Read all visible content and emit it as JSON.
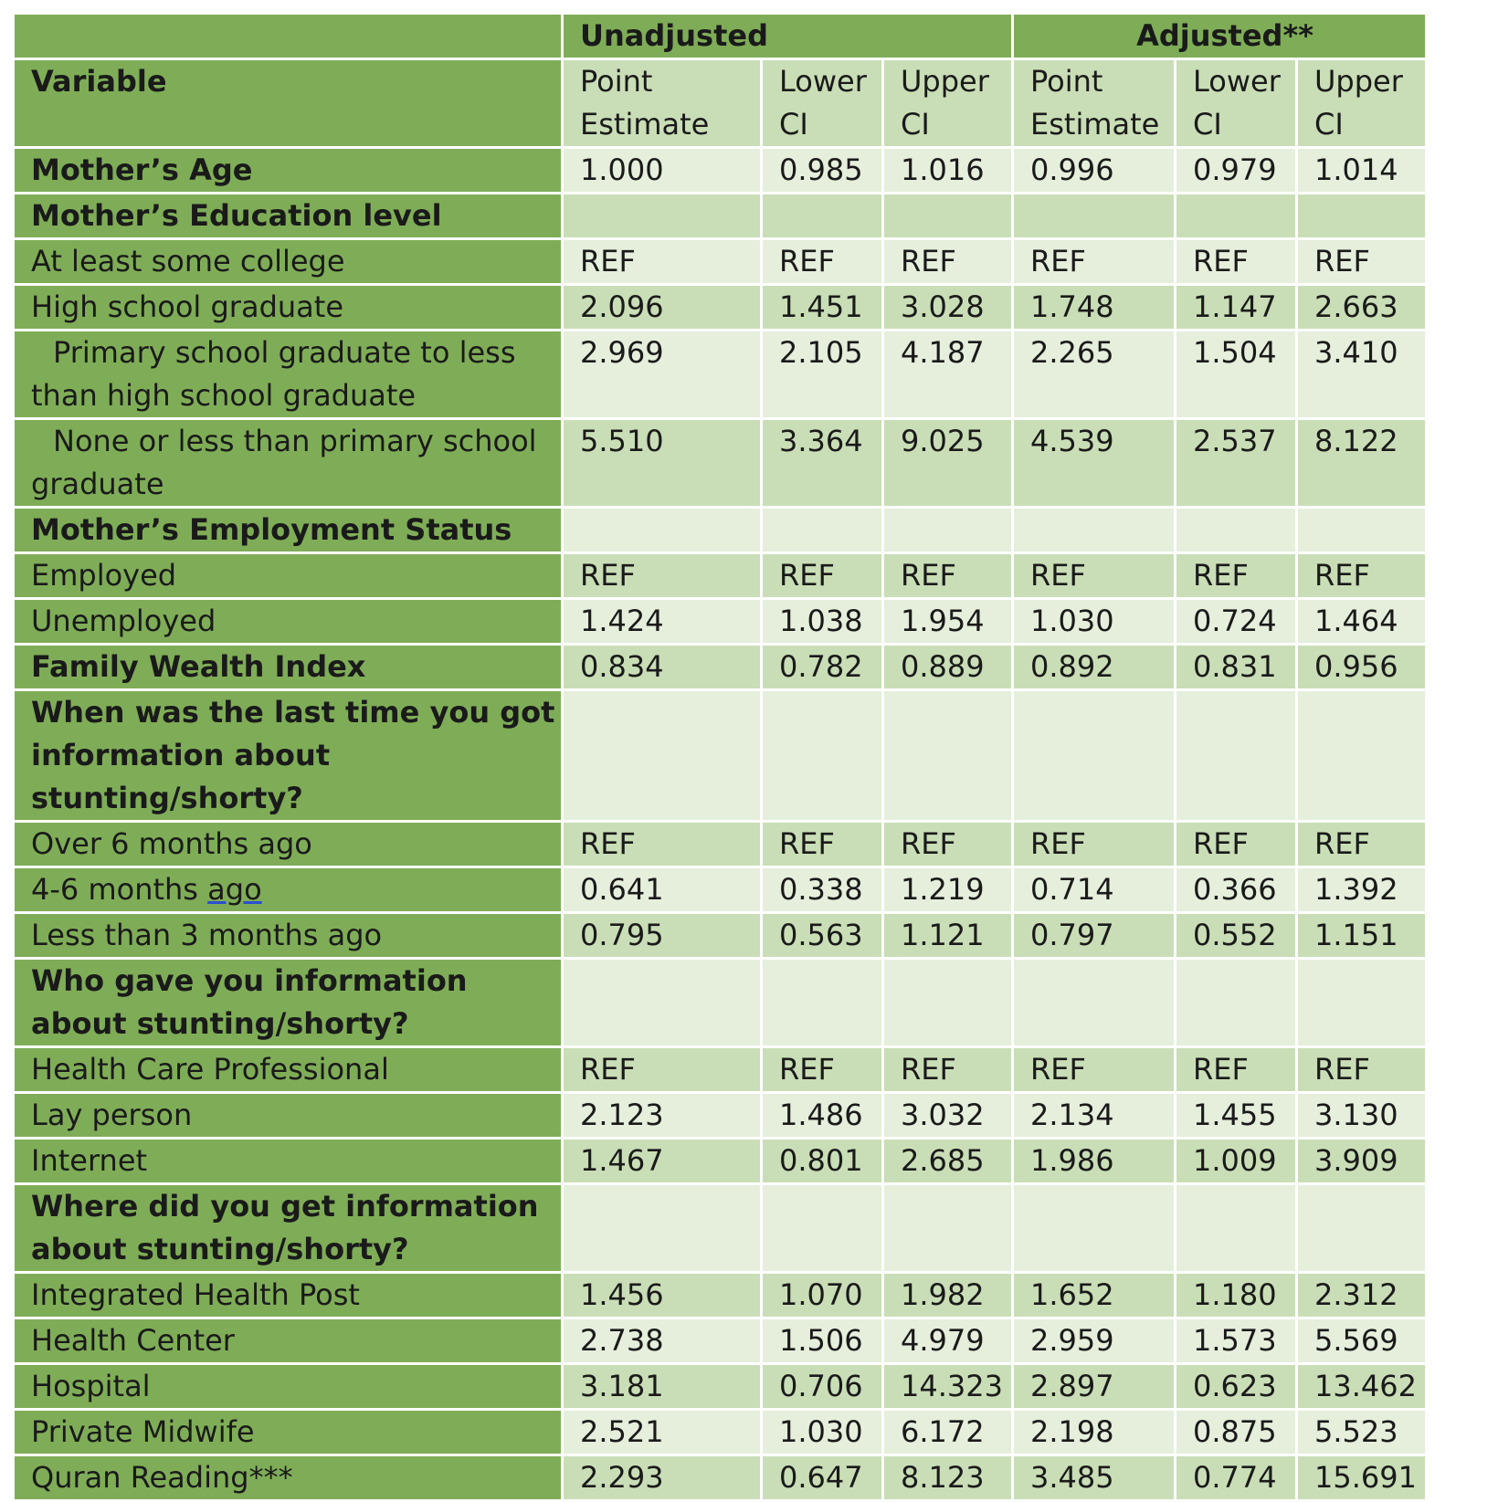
{
  "header": {
    "group_unadjusted": "Unadjusted",
    "group_adjusted": "Adjusted**",
    "variable": "Variable",
    "columns": [
      "Point Estimate",
      "Lower CI",
      "Upper CI",
      "Point Estimate",
      "Lower CI",
      "Upper CI"
    ]
  },
  "colors": {
    "label_green": "#7fad57",
    "band_dark": "#c9deb6",
    "band_light": "#e5efdc"
  },
  "rows": [
    {
      "label": "Mother’s Age",
      "values": [
        "1.000",
        "0.985",
        "1.016",
        "0.996",
        "0.979",
        "1.014"
      ]
    },
    {
      "label": "Mother’s Education level",
      "values": [
        "",
        "",
        "",
        "",
        "",
        ""
      ]
    },
    {
      "label": "At least some college",
      "values": [
        "REF",
        "REF",
        "REF",
        "REF",
        "REF",
        "REF"
      ]
    },
    {
      "label": "High school graduate",
      "values": [
        "2.096",
        "1.451",
        "3.028",
        "1.748",
        "1.147",
        "2.663"
      ]
    },
    {
      "label": "Primary school graduate to less than high school graduate",
      "values": [
        "2.969",
        "2.105",
        "4.187",
        "2.265",
        "1.504",
        "3.410"
      ]
    },
    {
      "label": "None or less than primary school graduate",
      "values": [
        "5.510",
        "3.364",
        "9.025",
        "4.539",
        "2.537",
        "8.122"
      ]
    },
    {
      "label": "Mother’s Employment Status",
      "values": [
        "",
        "",
        "",
        "",
        "",
        ""
      ]
    },
    {
      "label": "Employed",
      "values": [
        "REF",
        "REF",
        "REF",
        "REF",
        "REF",
        "REF"
      ]
    },
    {
      "label": "Unemployed",
      "values": [
        "1.424",
        "1.038",
        "1.954",
        "1.030",
        "0.724",
        "1.464"
      ]
    },
    {
      "label": "Family Wealth Index",
      "values": [
        "0.834",
        "0.782",
        "0.889",
        "0.892",
        "0.831",
        "0.956"
      ]
    },
    {
      "label": "When was the last time you got information about stunting/shorty?",
      "values": [
        "",
        "",
        "",
        "",
        "",
        ""
      ]
    },
    {
      "label": "Over 6 months ago",
      "values": [
        "REF",
        "REF",
        "REF",
        "REF",
        "REF",
        "REF"
      ]
    },
    {
      "label_pre": "4-6 months ",
      "label_ul": "ago",
      "values": [
        "0.641",
        "0.338",
        "1.219",
        "0.714",
        "0.366",
        "1.392"
      ]
    },
    {
      "label": "Less than 3 months ago",
      "values": [
        "0.795",
        "0.563",
        "1.121",
        "0.797",
        "0.552",
        "1.151"
      ]
    },
    {
      "label": "Who gave you information about stunting/shorty?",
      "values": [
        "",
        "",
        "",
        "",
        "",
        ""
      ]
    },
    {
      "label": "Health Care Professional",
      "values": [
        "REF",
        "REF",
        "REF",
        "REF",
        "REF",
        "REF"
      ]
    },
    {
      "label": "Lay person",
      "values": [
        "2.123",
        "1.486",
        "3.032",
        "2.134",
        "1.455",
        "3.130"
      ]
    },
    {
      "label": "Internet",
      "values": [
        "1.467",
        "0.801",
        "2.685",
        "1.986",
        "1.009",
        "3.909"
      ]
    },
    {
      "label": "Where did you get information about stunting/shorty?",
      "values": [
        "",
        "",
        "",
        "",
        "",
        ""
      ]
    },
    {
      "label": "Integrated Health Post",
      "values": [
        "1.456",
        "1.070",
        "1.982",
        "1.652",
        "1.180",
        "2.312"
      ]
    },
    {
      "label": "Health Center",
      "values": [
        "2.738",
        "1.506",
        "4.979",
        "2.959",
        "1.573",
        "5.569"
      ]
    },
    {
      "label": "Hospital",
      "values": [
        "3.181",
        "0.706",
        "14.323",
        "2.897",
        "0.623",
        "13.462"
      ]
    },
    {
      "label": "Private Midwife",
      "values": [
        "2.521",
        "1.030",
        "6.172",
        "2.198",
        "0.875",
        "5.523"
      ]
    },
    {
      "label": "Quran Reading***",
      "values": [
        "2.293",
        "0.647",
        "8.123",
        "3.485",
        "0.774",
        "15.691"
      ]
    }
  ]
}
